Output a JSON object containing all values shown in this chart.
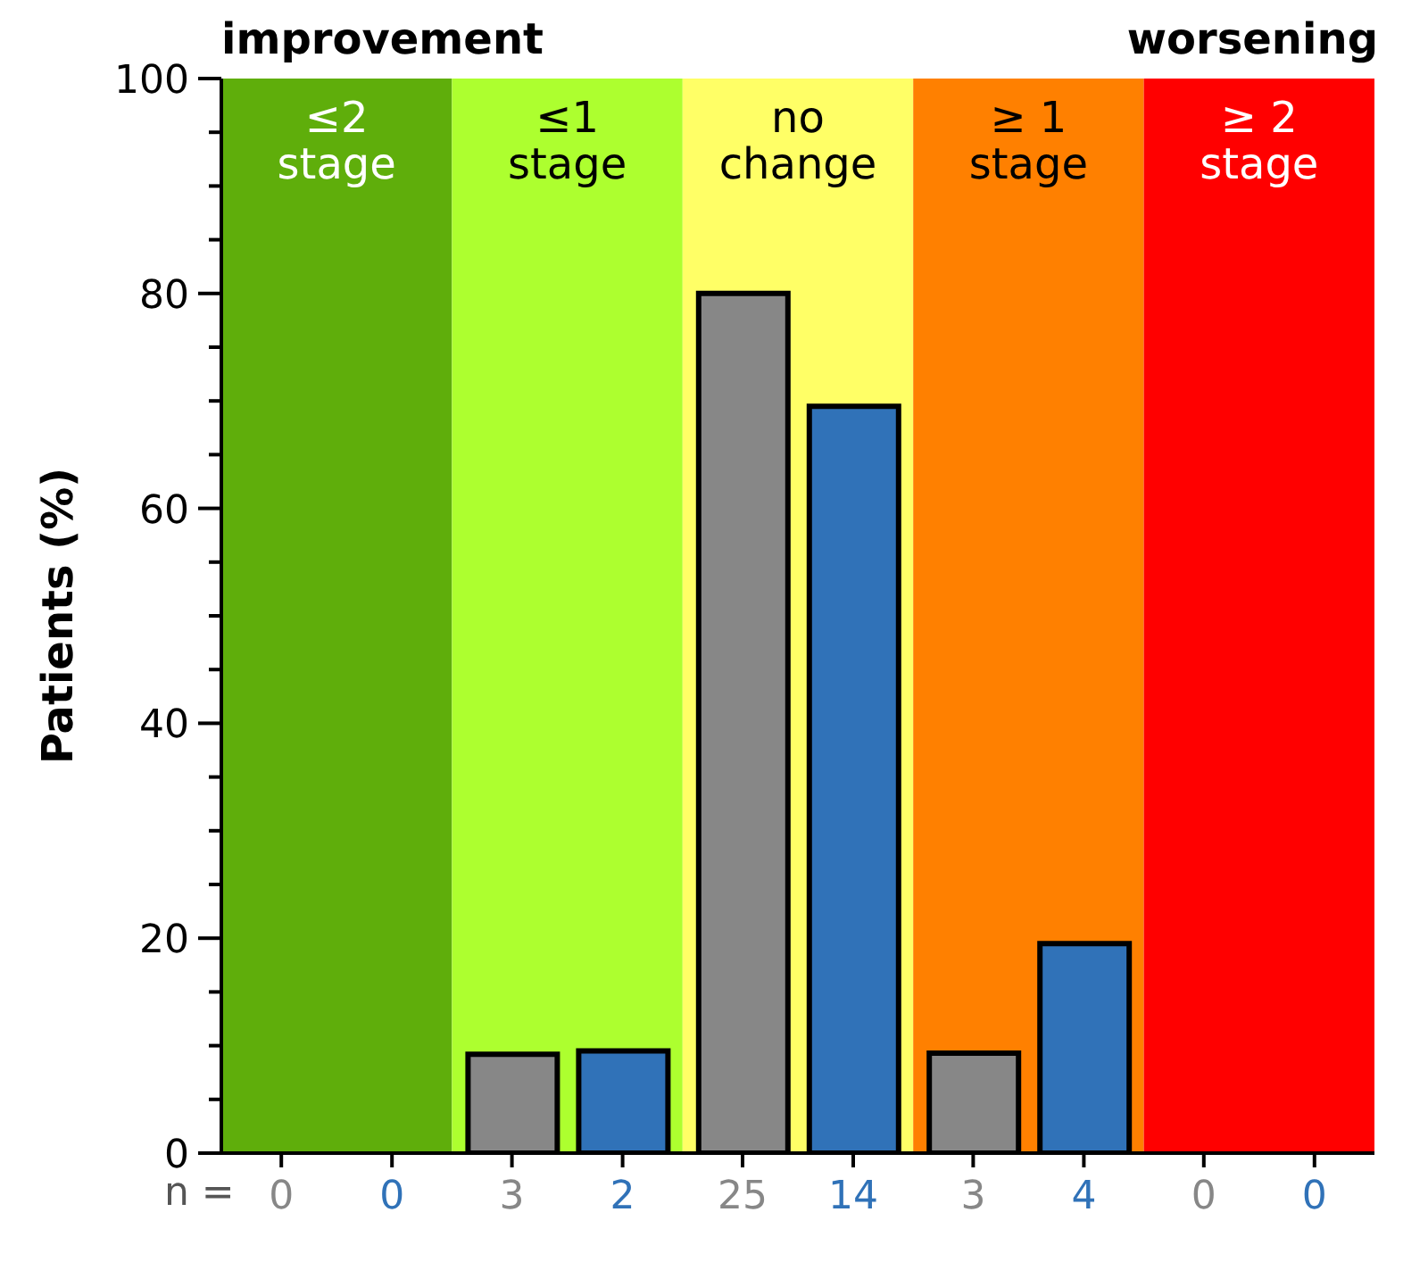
{
  "chart_data": {
    "type": "bar",
    "ylabel": "Patients (%)",
    "categories": [
      "≤2\nstage",
      "≤1\nstage",
      "no\nchange",
      "≥ 1\nstage",
      "≥ 2\nstage"
    ],
    "series": [
      {
        "color": "#878787",
        "values": [
          0,
          9.2,
          80,
          9.3,
          0
        ]
      },
      {
        "color": "#3072b8",
        "values": [
          0,
          9.5,
          69.5,
          19.5,
          0
        ]
      }
    ],
    "ylim": [
      0,
      100
    ],
    "yticks": [
      0,
      {
        "value": 5,
        "label": null
      },
      {
        "value": 10,
        "label": null
      },
      {
        "value": 15,
        "label": null
      },
      20,
      {
        "value": 25,
        "label": null
      },
      {
        "value": 30,
        "label": null
      },
      {
        "value": 35,
        "label": null
      },
      40,
      {
        "value": 45,
        "label": null
      },
      {
        "value": 50,
        "label": null
      },
      {
        "value": 55,
        "label": null
      },
      60,
      {
        "value": 65,
        "label": null
      },
      {
        "value": 70,
        "label": null
      },
      {
        "value": 75,
        "label": null
      },
      80,
      {
        "value": 85,
        "label": null
      },
      {
        "value": 90,
        "label": null
      },
      {
        "value": 95,
        "label": null
      },
      100
    ],
    "bands": [
      {
        "axis": "x",
        "from": "≤2\nstage",
        "to": "≤2\nstage",
        "color": "#5fae0b"
      },
      {
        "axis": "x",
        "from": "≤1\nstage",
        "to": "≤1\nstage",
        "color": "#adff2f"
      },
      {
        "axis": "x",
        "from": "no\nchange",
        "to": "no\nchange",
        "color": "#ffff66"
      },
      {
        "axis": "x",
        "from": "≥ 1\nstage",
        "to": "≥ 1\nstage",
        "color": "#ff8000"
      },
      {
        "axis": "x",
        "from": "≥ 2\nstage",
        "to": "≥ 2\nstage",
        "color": "#ff0000"
      }
    ],
    "annotations": [
      "improvement",
      "worsening",
      "n =",
      "0",
      "0",
      "3",
      "2",
      "25",
      "14",
      "3",
      "4",
      "0",
      "0"
    ],
    "grid": false,
    "legend": false
  }
}
